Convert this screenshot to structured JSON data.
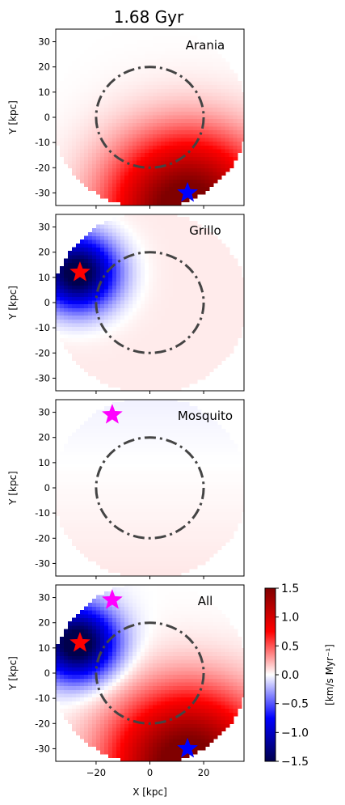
{
  "figure": {
    "title": "1.68 Gyr"
  },
  "chart_data": {
    "type": "heatmap",
    "title": "1.68 Gyr",
    "xlabel": "X [kpc]",
    "ylabel": "Y [kpc]",
    "xlim": [
      -35,
      35
    ],
    "ylim": [
      -35,
      35
    ],
    "xticks": [
      -20,
      0,
      20
    ],
    "yticks": [
      -30,
      -20,
      -10,
      0,
      10,
      20,
      30
    ],
    "reference_circle_radius_kpc": 20,
    "map_radius_kpc": 36,
    "colorbar": {
      "label": "[km/s Myr⁻¹]",
      "range": [
        -1.5,
        1.5
      ],
      "ticks": [
        -1.5,
        -1.0,
        -0.5,
        0.0,
        0.5,
        1.0,
        1.5
      ],
      "tick_labels": [
        "−1.5",
        "−1.0",
        "−0.5",
        "0.0",
        "0.5",
        "1.0",
        "1.5"
      ],
      "colormap": "seismic"
    },
    "panels": [
      {
        "label": "Arania",
        "field_sources": [
          {
            "x": 14,
            "y": -36,
            "amp": 1.7,
            "width": 20
          }
        ],
        "markers": [
          {
            "x": 14,
            "y": -30,
            "symbol": "star",
            "color": "#0000ff"
          }
        ]
      },
      {
        "label": "Grillo",
        "field_sources": [
          {
            "x": -27,
            "y": 12,
            "amp": -1.7,
            "width": 10
          }
        ],
        "background": 0.06,
        "markers": [
          {
            "x": -26,
            "y": 12,
            "symbol": "star",
            "color": "#ff0000"
          }
        ]
      },
      {
        "label": "Mosquito",
        "field_sources": [],
        "gradient": {
          "top": -0.04,
          "bottom": 0.07
        },
        "markers": [
          {
            "x": -14,
            "y": 29,
            "symbol": "star",
            "color": "#ff00ff"
          }
        ]
      },
      {
        "label": "All",
        "field_sources": [
          {
            "x": 14,
            "y": -36,
            "amp": 1.7,
            "width": 20
          },
          {
            "x": -27,
            "y": 12,
            "amp": -1.7,
            "width": 10
          }
        ],
        "markers": [
          {
            "x": 14,
            "y": -30,
            "symbol": "star",
            "color": "#0000ff"
          },
          {
            "x": -26,
            "y": 12,
            "symbol": "star",
            "color": "#ff0000"
          },
          {
            "x": -14,
            "y": 29,
            "symbol": "star",
            "color": "#ff00ff"
          }
        ]
      }
    ]
  }
}
